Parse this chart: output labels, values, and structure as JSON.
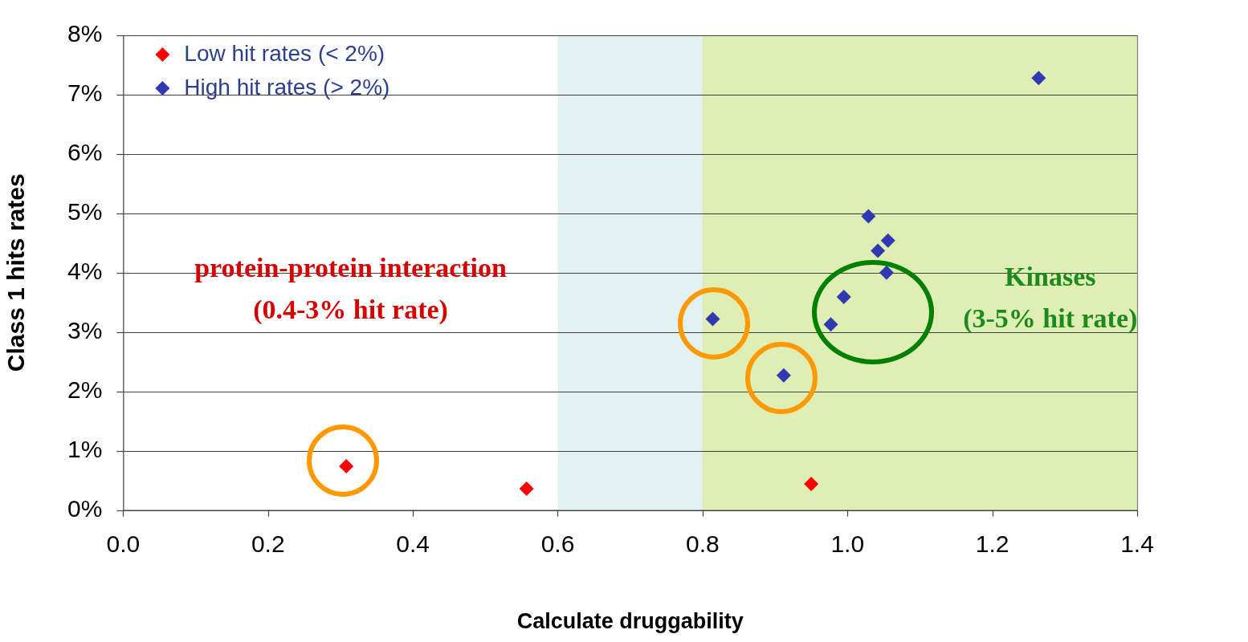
{
  "chart_data": {
    "type": "scatter",
    "xlabel": "Calculate druggability",
    "ylabel": "Class 1 hits rates",
    "series": [
      {
        "name": "Low hit rates (< 2%)",
        "color": "#ff0000",
        "x": [
          0.308,
          0.557,
          0.95
        ],
        "values": [
          0.74,
          0.36,
          0.44
        ]
      },
      {
        "name": "High hit rates (> 2%)",
        "color": "#3039b0",
        "x": [
          0.814,
          0.912,
          0.977,
          0.995,
          1.029,
          1.042,
          1.056,
          1.054,
          1.264
        ],
        "values": [
          3.22,
          2.27,
          3.13,
          3.59,
          4.95,
          4.37,
          4.54,
          4.0,
          7.28
        ]
      }
    ],
    "xlim": [
      0,
      1.4
    ],
    "xticks": [
      {
        "value": 0,
        "label": "0.0"
      },
      0.2,
      0.4,
      0.6,
      0.8,
      {
        "value": 1,
        "label": "1.0"
      },
      1.2,
      1.4
    ],
    "ylim": [
      0,
      8
    ],
    "yticks": [
      {
        "value": 0,
        "label": "0%"
      },
      {
        "value": 1,
        "label": "1%"
      },
      {
        "value": 2,
        "label": "2%"
      },
      {
        "value": 3,
        "label": "3%"
      },
      {
        "value": 4,
        "label": "4%"
      },
      {
        "value": 5,
        "label": "5%"
      },
      {
        "value": 6,
        "label": "6%"
      },
      {
        "value": 7,
        "label": "7%"
      },
      {
        "value": 8,
        "label": "8%"
      }
    ],
    "bands": [
      {
        "axis": "x",
        "from": 0.6,
        "to": 0.8,
        "color": "#e2f1f2"
      },
      {
        "axis": "x",
        "from": 0.8,
        "to": 1.4,
        "color": "#dfeeb4"
      }
    ],
    "annotations": [
      "protein-protein interaction\n(0.4-3% hit rate)",
      "Kinases\n(3-5% hit rate)"
    ],
    "grid": "y",
    "legend": "top left",
    "marker": "diamond"
  }
}
